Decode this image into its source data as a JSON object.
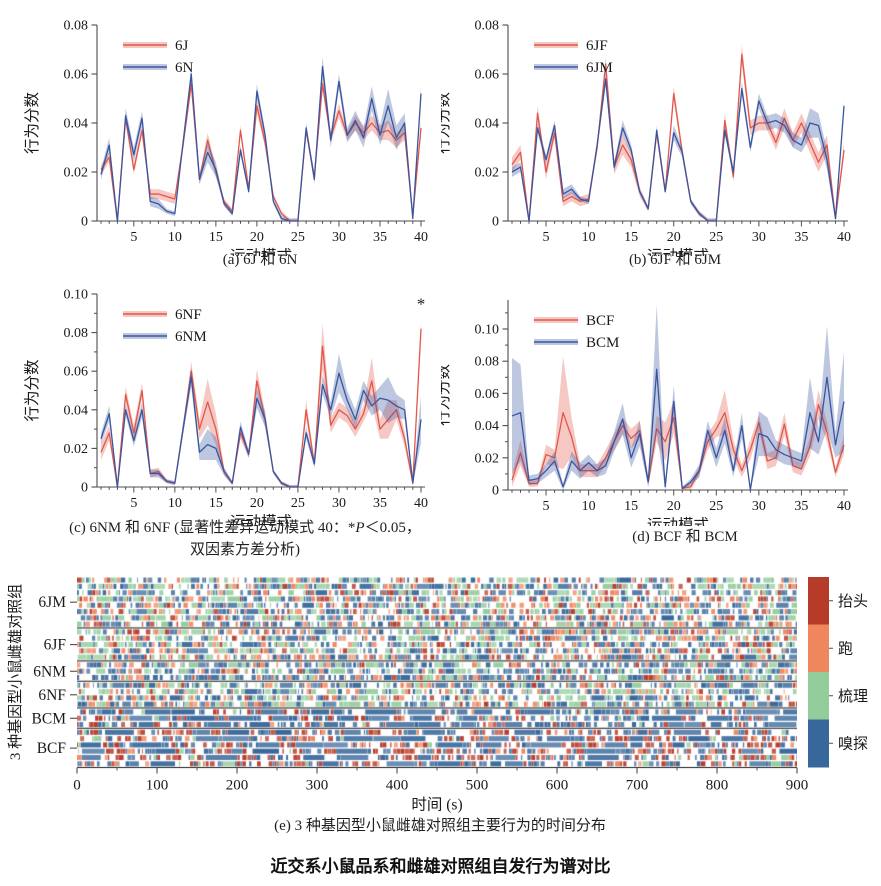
{
  "figure_title": "近交系小鼠品系和雌雄对照组自发行为谱对比",
  "colors": {
    "red_line": "#e2574a",
    "blue_line": "#3a55a0",
    "axis": "#4d4d4d",
    "behavior_head": "#b73b29",
    "behavior_run": "#ef865e",
    "behavior_groom": "#93cd9c",
    "behavior_sniff": "#38689b"
  },
  "chart_data": [
    {
      "id": "a",
      "type": "line",
      "caption": "(a) 6J 和 6N",
      "xlabel": "运动模式",
      "ylabel": "行为分数",
      "xlim": [
        1,
        40
      ],
      "xticks": [
        5,
        10,
        15,
        20,
        25,
        30,
        35,
        40
      ],
      "ylim": [
        0,
        0.08
      ],
      "yticks": [
        0,
        0.02,
        0.04,
        0.06,
        0.08
      ],
      "y_minor": false,
      "series": [
        {
          "name": "6J",
          "color": "#e2574a",
          "values": [
            0.021,
            0.026,
            0,
            0.042,
            0.021,
            0.037,
            0.011,
            0.011,
            0.01,
            0.009,
            0.031,
            0.056,
            0.017,
            0.033,
            0.02,
            0.008,
            0.004,
            0.037,
            0.013,
            0.047,
            0.032,
            0.01,
            0.003,
            0,
            0,
            0.037,
            0.018,
            0.056,
            0.034,
            0.045,
            0.035,
            0.04,
            0.036,
            0.04,
            0.036,
            0.037,
            0.033,
            0.036,
            0.002,
            0.038
          ],
          "band": [
            0.002,
            0.002,
            0.001,
            0.002,
            0.002,
            0.002,
            0.002,
            0.002,
            0.002,
            0.002,
            0.002,
            0.003,
            0.002,
            0.003,
            0.002,
            0.001,
            0.001,
            0.002,
            0.001,
            0.003,
            0.002,
            0.001,
            0.001,
            0.001,
            0.001,
            0.002,
            0.002,
            0.003,
            0.002,
            0.003,
            0.002,
            0.003,
            0.003,
            0.003,
            0.003,
            0.004,
            0.003,
            0.003,
            0.001,
            0.003
          ]
        },
        {
          "name": "6N",
          "color": "#3a55a0",
          "values": [
            0.019,
            0.031,
            0,
            0.043,
            0.027,
            0.042,
            0.008,
            0.007,
            0.004,
            0.003,
            0.032,
            0.06,
            0.017,
            0.028,
            0.021,
            0.007,
            0.003,
            0.029,
            0.012,
            0.053,
            0.035,
            0.008,
            0.001,
            0,
            0,
            0.038,
            0.017,
            0.063,
            0.033,
            0.057,
            0.035,
            0.041,
            0.034,
            0.05,
            0.035,
            0.047,
            0.034,
            0.04,
            0.001,
            0.052
          ],
          "band": [
            0.002,
            0.003,
            0.001,
            0.003,
            0.003,
            0.003,
            0.002,
            0.002,
            0.001,
            0.001,
            0.002,
            0.003,
            0.002,
            0.004,
            0.003,
            0.001,
            0.001,
            0.002,
            0.001,
            0.003,
            0.002,
            0.001,
            0.001,
            0.001,
            0.001,
            0.002,
            0.002,
            0.004,
            0.003,
            0.003,
            0.003,
            0.004,
            0.004,
            0.005,
            0.004,
            0.007,
            0.005,
            0.004,
            0.001,
            0.003
          ]
        }
      ]
    },
    {
      "id": "b",
      "type": "line",
      "caption": "(b) 6JF 和 6JM",
      "xlabel": "运动模式",
      "ylabel": "行为分数",
      "xlim": [
        1,
        40
      ],
      "xticks": [
        5,
        10,
        15,
        20,
        25,
        30,
        35,
        40
      ],
      "ylim": [
        0,
        0.08
      ],
      "yticks": [
        0,
        0.02,
        0.04,
        0.06,
        0.08
      ],
      "y_minor": false,
      "series": [
        {
          "name": "6JF",
          "color": "#e2574a",
          "values": [
            0.023,
            0.028,
            0,
            0.044,
            0.02,
            0.036,
            0.008,
            0.01,
            0.008,
            0.009,
            0.03,
            0.064,
            0.022,
            0.031,
            0.025,
            0.012,
            0.005,
            0.036,
            0.012,
            0.052,
            0.028,
            0.008,
            0.003,
            0,
            0,
            0.041,
            0.018,
            0.068,
            0.038,
            0.04,
            0.04,
            0.032,
            0.042,
            0.033,
            0.04,
            0.032,
            0.024,
            0.031,
            0.001,
            0.029
          ],
          "band": [
            0.003,
            0.003,
            0.001,
            0.003,
            0.003,
            0.002,
            0.002,
            0.002,
            0.002,
            0.002,
            0.002,
            0.003,
            0.003,
            0.004,
            0.003,
            0.002,
            0.001,
            0.002,
            0.001,
            0.003,
            0.002,
            0.001,
            0.001,
            0.001,
            0.001,
            0.003,
            0.002,
            0.004,
            0.003,
            0.003,
            0.003,
            0.003,
            0.004,
            0.003,
            0.004,
            0.004,
            0.004,
            0.004,
            0.001,
            0.003
          ]
        },
        {
          "name": "6JM",
          "color": "#3a55a0",
          "values": [
            0.02,
            0.022,
            0,
            0.038,
            0.025,
            0.039,
            0.011,
            0.013,
            0.009,
            0.008,
            0.031,
            0.058,
            0.022,
            0.038,
            0.029,
            0.012,
            0.005,
            0.037,
            0.012,
            0.036,
            0.028,
            0.008,
            0.003,
            0,
            0,
            0.037,
            0.02,
            0.054,
            0.03,
            0.049,
            0.04,
            0.041,
            0.039,
            0.033,
            0.031,
            0.04,
            0.039,
            0.025,
            0.001,
            0.047
          ],
          "band": [
            0.002,
            0.002,
            0.001,
            0.002,
            0.002,
            0.002,
            0.002,
            0.002,
            0.001,
            0.001,
            0.002,
            0.003,
            0.002,
            0.003,
            0.002,
            0.001,
            0.001,
            0.002,
            0.001,
            0.003,
            0.002,
            0.001,
            0.001,
            0.001,
            0.001,
            0.002,
            0.002,
            0.003,
            0.002,
            0.003,
            0.003,
            0.003,
            0.003,
            0.003,
            0.003,
            0.006,
            0.005,
            0.004,
            0.001,
            0.002
          ]
        }
      ]
    },
    {
      "id": "c",
      "type": "line",
      "caption_parts": {
        "pre": "(c)  6NM 和 6NF (显著性差异运动模式 40：*",
        "italic": "P",
        "post": "＜0.05，",
        "line2": "双因素方差分析)"
      },
      "xlabel": "运动模式",
      "ylabel": "行为分数",
      "xlim": [
        1,
        40
      ],
      "xticks": [
        5,
        10,
        15,
        20,
        25,
        30,
        35,
        40
      ],
      "ylim": [
        0,
        0.1
      ],
      "yticks": [
        0,
        0.02,
        0.04,
        0.06,
        0.08,
        0.1
      ],
      "y_minor": true,
      "annotation": {
        "text": "*",
        "x": 40,
        "y": 0.092
      },
      "series": [
        {
          "name": "6NF",
          "color": "#e2574a",
          "values": [
            0.018,
            0.028,
            0,
            0.048,
            0.028,
            0.05,
            0.007,
            0.008,
            0.003,
            0.002,
            0.03,
            0.06,
            0.03,
            0.044,
            0.03,
            0.008,
            0.002,
            0.028,
            0.017,
            0.055,
            0.035,
            0.008,
            0.002,
            0,
            0,
            0.04,
            0.012,
            0.073,
            0.032,
            0.04,
            0.037,
            0.03,
            0.038,
            0.055,
            0.03,
            0.035,
            0.04,
            0.025,
            0.002,
            0.082
          ],
          "band": [
            0.004,
            0.004,
            0.001,
            0.004,
            0.004,
            0.004,
            0.002,
            0.002,
            0.001,
            0.001,
            0.003,
            0.005,
            0.005,
            0.012,
            0.008,
            0.002,
            0.001,
            0.003,
            0.002,
            0.006,
            0.004,
            0.001,
            0.001,
            0.001,
            0.001,
            0.005,
            0.002,
            0.012,
            0.004,
            0.004,
            0.004,
            0.004,
            0.004,
            0.012,
            0.005,
            0.01,
            0.005,
            0.004,
            0.001,
            0.004
          ]
        },
        {
          "name": "6NM",
          "color": "#3a55a0",
          "values": [
            0.025,
            0.038,
            0,
            0.04,
            0.024,
            0.04,
            0.007,
            0.007,
            0.003,
            0.002,
            0.03,
            0.057,
            0.018,
            0.022,
            0.02,
            0.008,
            0.002,
            0.031,
            0.017,
            0.046,
            0.035,
            0.008,
            0.002,
            0,
            0,
            0.028,
            0.012,
            0.053,
            0.04,
            0.059,
            0.045,
            0.035,
            0.05,
            0.042,
            0.046,
            0.045,
            0.042,
            0.04,
            0.002,
            0.035
          ],
          "band": [
            0.003,
            0.004,
            0.001,
            0.003,
            0.003,
            0.004,
            0.002,
            0.002,
            0.001,
            0.001,
            0.003,
            0.005,
            0.004,
            0.008,
            0.006,
            0.002,
            0.001,
            0.003,
            0.002,
            0.005,
            0.004,
            0.001,
            0.001,
            0.001,
            0.001,
            0.003,
            0.002,
            0.005,
            0.004,
            0.01,
            0.005,
            0.005,
            0.005,
            0.005,
            0.006,
            0.012,
            0.006,
            0.005,
            0.001,
            0.012
          ]
        }
      ]
    },
    {
      "id": "d",
      "type": "line",
      "caption": "(d)  BCF 和 BCM",
      "xlabel": "运动模式",
      "ylabel": "行为分数",
      "xlim": [
        1,
        40
      ],
      "xticks": [
        5,
        10,
        15,
        20,
        25,
        30,
        35,
        40
      ],
      "ylim": [
        0,
        0.118
      ],
      "yticks": [
        0,
        0.02,
        0.04,
        0.06,
        0.08,
        0.1
      ],
      "y_minor": true,
      "series": [
        {
          "name": "BCF",
          "color": "#e2574a",
          "values": [
            0.006,
            0.023,
            0.004,
            0.004,
            0.022,
            0.02,
            0.048,
            0.033,
            0.012,
            0.012,
            0.012,
            0.02,
            0.03,
            0.04,
            0.032,
            0.037,
            0.005,
            0.038,
            0.03,
            0.045,
            0.001,
            0.002,
            0.012,
            0.03,
            0.038,
            0.048,
            0.025,
            0.012,
            0.025,
            0.042,
            0.018,
            0.02,
            0.041,
            0.015,
            0.013,
            0.027,
            0.053,
            0.036,
            0.011,
            0.028
          ],
          "band": [
            0.004,
            0.008,
            0.002,
            0.002,
            0.006,
            0.005,
            0.035,
            0.012,
            0.004,
            0.004,
            0.004,
            0.005,
            0.005,
            0.005,
            0.006,
            0.006,
            0.003,
            0.008,
            0.012,
            0.01,
            0.001,
            0.002,
            0.003,
            0.005,
            0.005,
            0.014,
            0.006,
            0.004,
            0.006,
            0.005,
            0.005,
            0.005,
            0.007,
            0.004,
            0.004,
            0.006,
            0.009,
            0.006,
            0.003,
            0.006
          ]
        },
        {
          "name": "BCM",
          "color": "#3a55a0",
          "values": [
            0.046,
            0.048,
            0.006,
            0.007,
            0.012,
            0.018,
            0.002,
            0.018,
            0.012,
            0.017,
            0.012,
            0.015,
            0.03,
            0.044,
            0.02,
            0.035,
            0.005,
            0.075,
            0.002,
            0.055,
            0.001,
            0.005,
            0.012,
            0.037,
            0.02,
            0.037,
            0.012,
            0.04,
            0.0,
            0.035,
            0.033,
            0.025,
            0.022,
            0.02,
            0.018,
            0.048,
            0.03,
            0.07,
            0.028,
            0.055
          ],
          "band": [
            0.036,
            0.03,
            0.003,
            0.003,
            0.004,
            0.006,
            0.002,
            0.006,
            0.005,
            0.005,
            0.004,
            0.005,
            0.006,
            0.01,
            0.006,
            0.008,
            0.003,
            0.04,
            0.002,
            0.01,
            0.001,
            0.002,
            0.004,
            0.006,
            0.006,
            0.008,
            0.004,
            0.008,
            0.001,
            0.014,
            0.012,
            0.006,
            0.006,
            0.005,
            0.005,
            0.022,
            0.008,
            0.032,
            0.008,
            0.031
          ]
        }
      ]
    },
    {
      "id": "e",
      "type": "ethogram-raster",
      "caption": "(e) 3 种基因型小鼠雌雄对照组主要行为的时间分布",
      "xlabel": "时间 (s)",
      "ylabel": "3 种基因型小鼠雌雄对照组",
      "xlim": [
        0,
        900
      ],
      "xticks": [
        0,
        100,
        200,
        300,
        400,
        500,
        600,
        700,
        800,
        900
      ],
      "behaviors": [
        {
          "name": "抬头",
          "color": "#b73b29"
        },
        {
          "name": "跑",
          "color": "#ef865e"
        },
        {
          "name": "梳理",
          "color": "#93cd9c"
        },
        {
          "name": "嗅探",
          "color": "#38689b"
        }
      ],
      "groups": [
        {
          "label": "6JM",
          "rows": 8,
          "density": 0.58,
          "weights": [
            0.15,
            0.2,
            0.24,
            0.41
          ],
          "long_sniff": false
        },
        {
          "label": "6JF",
          "rows": 5,
          "density": 0.58,
          "weights": [
            0.15,
            0.21,
            0.26,
            0.38
          ],
          "long_sniff": false
        },
        {
          "label": "6NM",
          "rows": 3,
          "density": 0.6,
          "weights": [
            0.13,
            0.17,
            0.2,
            0.5
          ],
          "long_sniff": false
        },
        {
          "label": "6NF",
          "rows": 4,
          "density": 0.58,
          "weights": [
            0.13,
            0.14,
            0.27,
            0.46
          ],
          "long_sniff": false
        },
        {
          "label": "BCM",
          "rows": 3,
          "density": 0.52,
          "weights": [
            0.27,
            0.07,
            0.04,
            0.62
          ],
          "long_sniff": true
        },
        {
          "label": "BCF",
          "rows": 6,
          "density": 0.56,
          "weights": [
            0.43,
            0.08,
            0.04,
            0.45
          ],
          "long_sniff": true
        }
      ],
      "seed": 7
    }
  ]
}
